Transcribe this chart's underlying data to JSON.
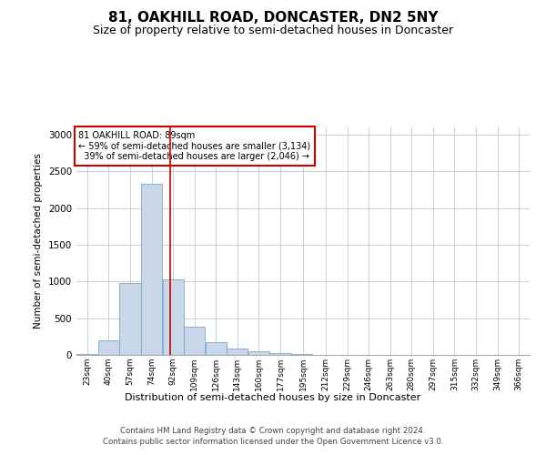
{
  "title": "81, OAKHILL ROAD, DONCASTER, DN2 5NY",
  "subtitle": "Size of property relative to semi-detached houses in Doncaster",
  "xlabel": "Distribution of semi-detached houses by size in Doncaster",
  "ylabel": "Number of semi-detached properties",
  "property_size": 89,
  "property_label": "81 OAKHILL ROAD: 89sqm",
  "pct_smaller": 59,
  "pct_larger": 39,
  "n_smaller": 3134,
  "n_larger": 2046,
  "bar_color": "#c8d8e8",
  "bar_edge_color": "#7aa8c8",
  "marker_line_color": "#cc0000",
  "annotation_box_edge": "#cc0000",
  "categories": [
    "23sqm",
    "40sqm",
    "57sqm",
    "74sqm",
    "92sqm",
    "109sqm",
    "126sqm",
    "143sqm",
    "160sqm",
    "177sqm",
    "195sqm",
    "212sqm",
    "229sqm",
    "246sqm",
    "263sqm",
    "280sqm",
    "297sqm",
    "315sqm",
    "332sqm",
    "349sqm",
    "366sqm"
  ],
  "bin_edges": [
    14.5,
    31.5,
    48.5,
    65.5,
    82.5,
    99.5,
    116.5,
    133.5,
    150.5,
    167.5,
    184.5,
    203.5,
    220.5,
    237.5,
    254.5,
    271.5,
    288.5,
    305.5,
    322.5,
    339.5,
    356.5,
    373.5
  ],
  "values": [
    10,
    200,
    980,
    2330,
    1030,
    390,
    170,
    90,
    55,
    25,
    10,
    5,
    5,
    2,
    2,
    1,
    1,
    1,
    0,
    0,
    0
  ],
  "ylim": [
    0,
    3100
  ],
  "yticks": [
    0,
    500,
    1000,
    1500,
    2000,
    2500,
    3000
  ],
  "footer_line1": "Contains HM Land Registry data © Crown copyright and database right 2024.",
  "footer_line2": "Contains public sector information licensed under the Open Government Licence v3.0.",
  "background_color": "#ffffff",
  "grid_color": "#c8d0d8",
  "title_fontsize": 11,
  "subtitle_fontsize": 9
}
